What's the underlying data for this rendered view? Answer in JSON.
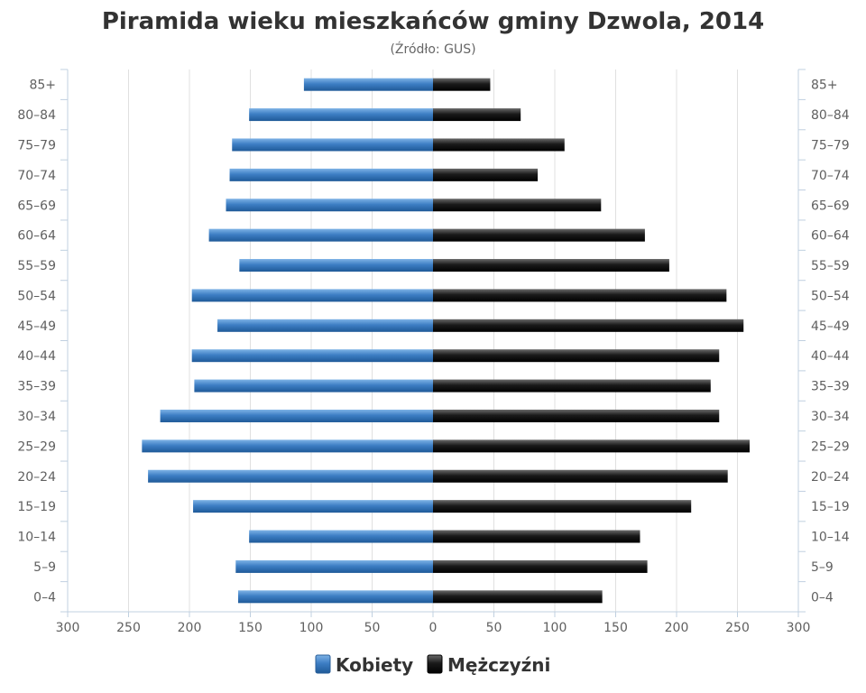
{
  "chart_data": {
    "type": "bar",
    "orientation": "horizontal-pyramid",
    "title": "Piramida wieku mieszkańców gminy Dzwola, 2014",
    "subtitle": "(Źródło: GUS)",
    "categories": [
      "0–4",
      "5–9",
      "10–14",
      "15–19",
      "20–24",
      "25–29",
      "30–34",
      "35–39",
      "40–44",
      "45–49",
      "50–54",
      "55–59",
      "60–64",
      "65–69",
      "70–74",
      "75–79",
      "80–84",
      "85+"
    ],
    "series": [
      {
        "name": "Kobiety",
        "color": "#3d7ec4",
        "values": [
          160,
          162,
          151,
          197,
          234,
          239,
          224,
          196,
          198,
          177,
          198,
          159,
          184,
          170,
          167,
          165,
          151,
          106
        ]
      },
      {
        "name": "Mężczyźni",
        "color": "#1a1a1a",
        "values": [
          139,
          176,
          170,
          212,
          242,
          260,
          235,
          228,
          235,
          255,
          241,
          194,
          174,
          138,
          86,
          108,
          72,
          47
        ]
      }
    ],
    "xlim": [
      -300,
      300
    ],
    "xticks": [
      -300,
      -250,
      -200,
      -150,
      -100,
      -50,
      0,
      50,
      100,
      150,
      200,
      250,
      300
    ],
    "xtick_labels": [
      "300",
      "250",
      "200",
      "150",
      "100",
      "50",
      "0",
      "50",
      "100",
      "150",
      "200",
      "250",
      "300"
    ],
    "grid": true,
    "legend_position": "bottom-center"
  }
}
